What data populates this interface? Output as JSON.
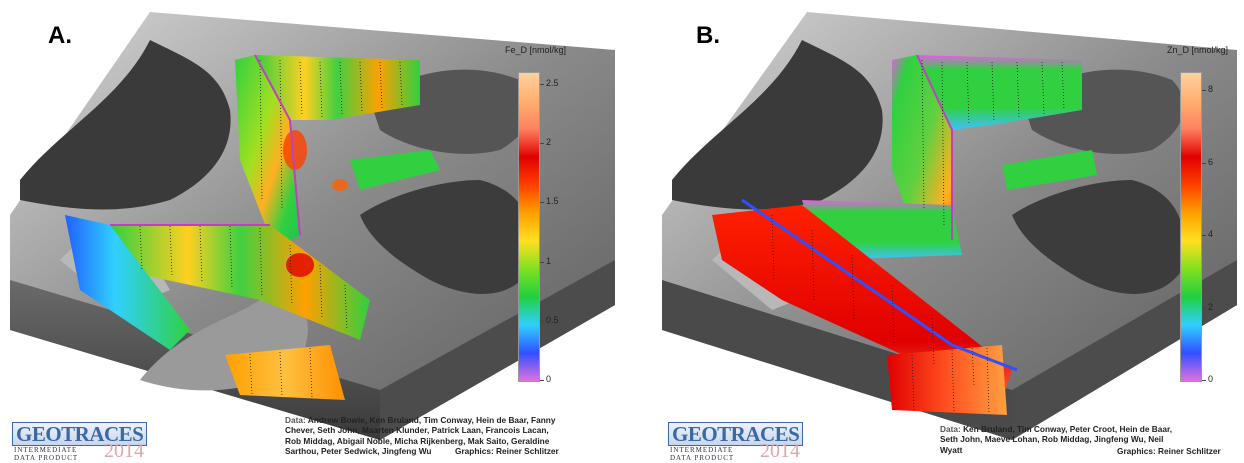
{
  "panels": [
    {
      "label": "A.",
      "colorbar": {
        "title": "Fe_D [nmol/kg]",
        "ticks": [
          "2.5",
          "2",
          "1.5",
          "1",
          "0.5",
          "0"
        ],
        "tick_values": [
          2.5,
          2,
          1.5,
          1,
          0.5,
          0
        ],
        "max": 2.6,
        "stops": [
          "#e070e0",
          "#3050ff",
          "#30d0ff",
          "#20d040",
          "#80e020",
          "#ffe020",
          "#ffa000",
          "#ff4000",
          "#e00000",
          "#ff8060",
          "#ffb070",
          "#ffd0a0"
        ]
      },
      "credits": {
        "data_label": "Data:",
        "data_text": "Andrew Bowie, Ken Bruland, Tim Conway, Hein de Baar, Fanny",
        "lines": [
          "Chever, Seth John, Maarten Klunder, Patrick Laan, Francois Lacan,",
          "Rob Middag, Abigail Noble, Micha Rijkenberg, Mak Saito, Geraldine",
          "Sarthou, Peter Sedwick, Jingfeng Wu"
        ],
        "graphics_label": "Graphics:",
        "graphics_text": "Reiner Schlitzer"
      }
    },
    {
      "label": "B.",
      "colorbar": {
        "title": "Zn_D [nmol/kg]",
        "ticks": [
          "8",
          "6",
          "4",
          "2",
          "0"
        ],
        "tick_values": [
          8,
          6,
          4,
          2,
          0
        ],
        "max": 8.5,
        "stops": [
          "#e070e0",
          "#3050ff",
          "#30d0ff",
          "#20d040",
          "#80e020",
          "#ffe020",
          "#ffa000",
          "#ff4000",
          "#e00000",
          "#ff8060",
          "#ffb070",
          "#ffd0a0"
        ]
      },
      "credits": {
        "data_label": "Data:",
        "data_text": "Ken Bruland, Tim Conway, Peter Croot, Hein de Baar,",
        "lines": [
          "Seth John, Maeve Lohan, Rob Middag, Jingfeng Wu, Neil",
          "Wyatt"
        ],
        "graphics_label": "Graphics:",
        "graphics_text": "Reiner Schlitzer"
      }
    }
  ],
  "logo": {
    "name": "GEOTRACES",
    "subtitle_1": "INTERMEDIATE",
    "subtitle_2": "DATA PRODUCT",
    "year": "2014"
  }
}
